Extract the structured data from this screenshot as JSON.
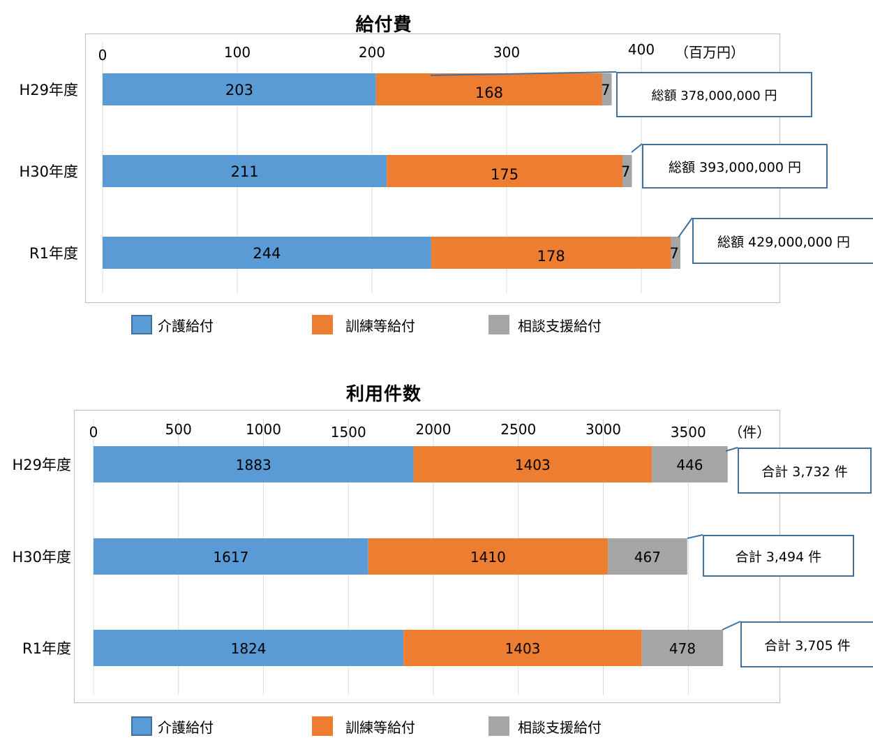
{
  "chart_data": [
    {
      "type": "bar",
      "orientation": "horizontal",
      "stacked": true,
      "title": "給付費",
      "unit_label": "（百万円）",
      "categories": [
        "H29年度",
        "H30年度",
        "R1年度"
      ],
      "series": [
        {
          "name": "介護給付",
          "values": [
            203,
            211,
            244
          ],
          "color": "#5b9bd5"
        },
        {
          "name": "訓練等給付",
          "values": [
            168,
            175,
            178
          ],
          "color": "#ed7d31"
        },
        {
          "name": "相談支援給付",
          "values": [
            7,
            7,
            7
          ],
          "color": "#a5a5a5"
        }
      ],
      "xlim": [
        0,
        500
      ],
      "xticks": [
        0,
        100,
        200,
        300,
        400
      ],
      "grid": true,
      "legend": "bottom",
      "totals": [
        "総額 378,000,000 円",
        "総額 393,000,000 円",
        "総額 429,000,000 円"
      ]
    },
    {
      "type": "bar",
      "orientation": "horizontal",
      "stacked": true,
      "title": "利用件数",
      "unit_label": "（件）",
      "categories": [
        "H29年度",
        "H30年度",
        "R1年度"
      ],
      "series": [
        {
          "name": "介護給付",
          "values": [
            1883,
            1617,
            1824
          ],
          "color": "#5b9bd5"
        },
        {
          "name": "訓練等給付",
          "values": [
            1403,
            1410,
            1403
          ],
          "color": "#ed7d31"
        },
        {
          "name": "相談支援給付",
          "values": [
            446,
            467,
            478
          ],
          "color": "#a5a5a5"
        }
      ],
      "xlim": [
        0,
        4000
      ],
      "xticks": [
        0,
        500,
        1000,
        1500,
        2000,
        2500,
        3000,
        3500
      ],
      "grid": true,
      "legend": "bottom",
      "totals": [
        "合計 3,732 件",
        "合計 3,494 件",
        "合計 3,705 件"
      ]
    }
  ]
}
